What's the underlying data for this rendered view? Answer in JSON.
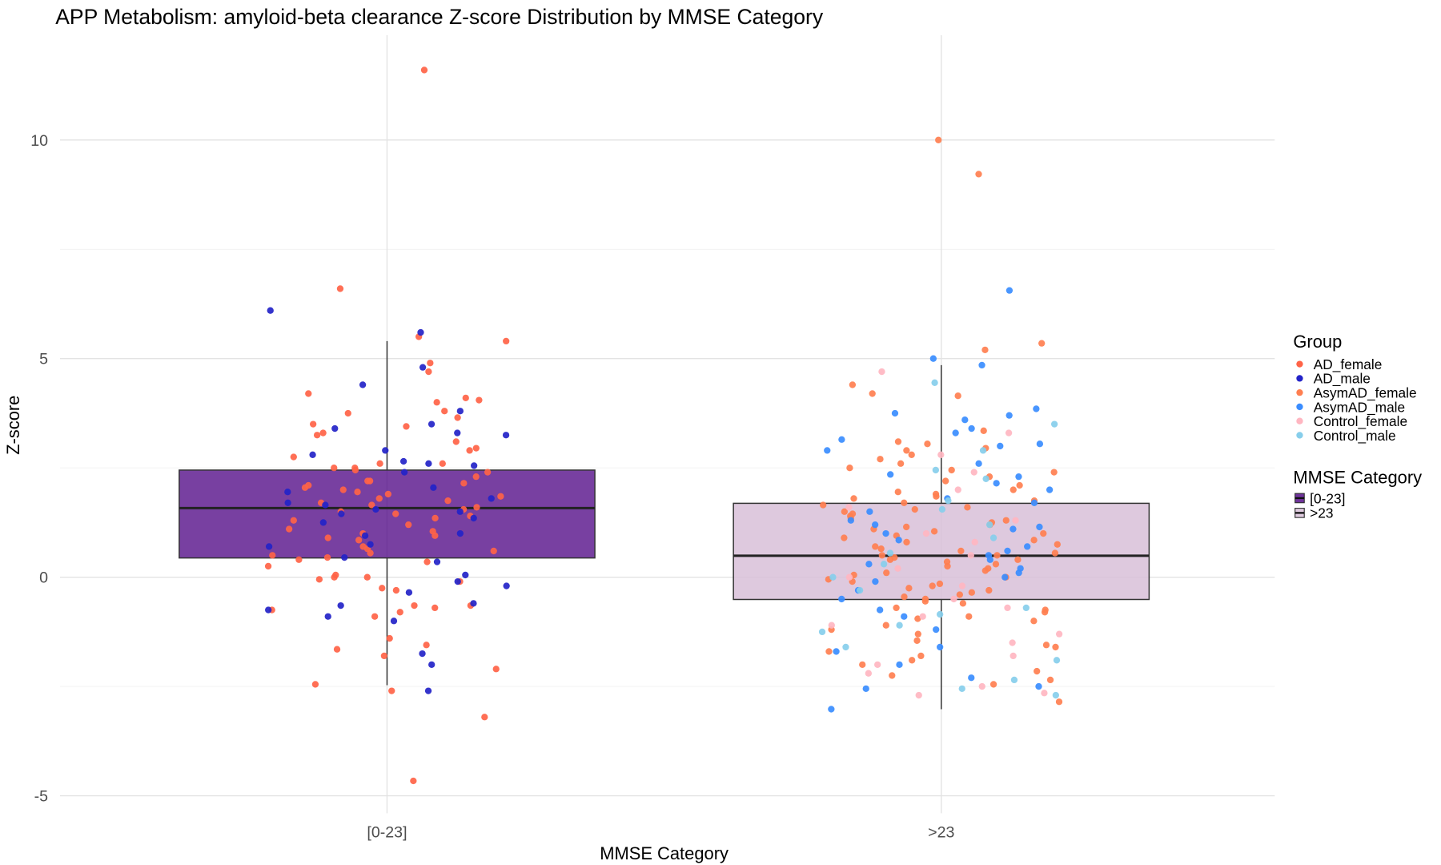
{
  "chart_data": {
    "type": "box+jitter",
    "title": "APP Metabolism: amyloid-beta clearance Z-score Distribution by MMSE Category",
    "xlabel": "MMSE Category",
    "ylabel": "Z-score",
    "categories": [
      "[0-23]",
      ">23"
    ],
    "ylim": [
      -5.4,
      12.4
    ],
    "yticks": [
      -5,
      0,
      5,
      10
    ],
    "ytick_labels": [
      "-5",
      "0",
      "5",
      "10"
    ],
    "grid": true,
    "boxes": [
      {
        "category": "[0-23]",
        "q1": 0.44,
        "median": 1.58,
        "q3": 2.45,
        "whisker_low": -2.47,
        "whisker_high": 5.4,
        "fill": "#4B0082",
        "alpha": 0.75
      },
      {
        "category": ">23",
        "q1": -0.51,
        "median": 0.49,
        "q3": 1.69,
        "whisker_low": -3.02,
        "whisker_high": 4.85,
        "fill": "#D8BFD8",
        "alpha": 0.85
      }
    ],
    "legend_group": {
      "title": "Group",
      "placement": "right",
      "entries": [
        {
          "name": "AD_female",
          "color": "#FF6347"
        },
        {
          "name": "AD_male",
          "color": "#2323C8"
        },
        {
          "name": "AsymAD_female",
          "color": "#FF7F50"
        },
        {
          "name": "AsymAD_male",
          "color": "#3A8DFF"
        },
        {
          "name": "Control_female",
          "color": "#FFB6C1"
        },
        {
          "name": "Control_male",
          "color": "#87CEEB"
        }
      ]
    },
    "legend_mmse": {
      "title": "MMSE Category",
      "entries": [
        {
          "name": "[0-23]",
          "color": "#4B0082"
        },
        {
          "name": ">23",
          "color": "#D8BFD8"
        }
      ]
    },
    "series": [
      {
        "name": "AD_female",
        "category": "[0-23]",
        "values": [
          11.6,
          6.6,
          5.5,
          5.4,
          4.9,
          4.7,
          4.2,
          4.05,
          4.0,
          4.1,
          3.8,
          3.75,
          3.65,
          3.5,
          3.45,
          3.3,
          3.25,
          3.1,
          2.95,
          2.9,
          2.75,
          2.6,
          2.6,
          2.5,
          2.5,
          2.45,
          2.4,
          2.3,
          2.2,
          2.2,
          2.15,
          2.1,
          2.05,
          2.0,
          1.95,
          1.9,
          1.85,
          1.8,
          1.75,
          1.7,
          1.65,
          1.6,
          1.55,
          1.5,
          1.45,
          1.4,
          1.35,
          1.3,
          1.2,
          1.1,
          1.05,
          1.0,
          0.95,
          0.9,
          0.85,
          0.7,
          0.65,
          0.6,
          0.55,
          0.5,
          0.45,
          0.4,
          0.35,
          0.25,
          0.05,
          0.0,
          0.0,
          -0.05,
          -0.1,
          -0.25,
          -0.3,
          -0.65,
          -0.65,
          -0.7,
          -0.75,
          -0.8,
          -0.9,
          -1.4,
          -1.55,
          -1.65,
          -1.8,
          -2.1,
          -2.45,
          -2.6,
          -3.2,
          -4.66
        ]
      },
      {
        "name": "AD_male",
        "category": "[0-23]",
        "values": [
          6.1,
          5.6,
          4.8,
          4.4,
          3.8,
          3.5,
          3.4,
          3.3,
          3.25,
          2.9,
          2.8,
          2.65,
          2.6,
          2.55,
          2.4,
          2.05,
          1.95,
          1.8,
          1.7,
          1.65,
          1.55,
          1.5,
          1.45,
          1.35,
          1.25,
          1.0,
          0.95,
          0.75,
          0.7,
          0.45,
          0.35,
          0.05,
          -0.1,
          -0.2,
          -0.35,
          -0.6,
          -0.65,
          -0.75,
          -0.9,
          -1.0,
          -1.75,
          -2.0,
          -2.6
        ]
      },
      {
        "name": "AsymAD_female",
        "category": ">23",
        "values": [
          10.0,
          9.22,
          5.35,
          5.2,
          4.4,
          4.15,
          4.2,
          3.35,
          3.05,
          3.1,
          2.95,
          2.9,
          2.8,
          2.7,
          2.6,
          2.5,
          2.45,
          2.4,
          2.3,
          2.2,
          2.1,
          2.0,
          1.95,
          1.9,
          1.85,
          1.8,
          1.75,
          1.7,
          1.65,
          1.6,
          1.55,
          1.5,
          1.45,
          1.4,
          1.35,
          1.3,
          1.25,
          1.2,
          1.15,
          1.1,
          1.05,
          1.0,
          0.95,
          0.9,
          0.85,
          0.8,
          0.75,
          0.7,
          0.65,
          0.6,
          0.55,
          0.5,
          0.5,
          0.45,
          0.4,
          0.4,
          0.35,
          0.3,
          0.25,
          0.2,
          0.15,
          0.1,
          0.05,
          0.0,
          -0.05,
          -0.1,
          -0.15,
          -0.2,
          -0.25,
          -0.3,
          -0.35,
          -0.4,
          -0.45,
          -0.5,
          -0.55,
          -0.6,
          -0.7,
          -0.75,
          -0.8,
          -0.9,
          -0.95,
          -1.0,
          -1.1,
          -1.2,
          -1.3,
          -1.45,
          -1.55,
          -1.6,
          -1.7,
          -1.8,
          -1.9,
          -2.0,
          -2.15,
          -2.25,
          -2.35,
          -2.45,
          -2.85
        ]
      },
      {
        "name": "AsymAD_male",
        "category": ">23",
        "values": [
          6.56,
          5.0,
          4.85,
          3.85,
          3.75,
          3.7,
          3.6,
          3.4,
          3.3,
          3.15,
          3.05,
          3.0,
          2.9,
          2.6,
          2.35,
          2.3,
          2.15,
          2.0,
          1.8,
          1.7,
          1.5,
          1.3,
          1.2,
          1.15,
          1.1,
          1.0,
          0.85,
          0.7,
          0.6,
          0.5,
          0.4,
          0.3,
          0.2,
          0.1,
          0.0,
          -0.1,
          -0.3,
          -0.5,
          -0.75,
          -0.9,
          -1.2,
          -1.6,
          -1.7,
          -2.0,
          -2.3,
          -2.5,
          -2.55,
          -3.02
        ]
      },
      {
        "name": "Control_female",
        "category": ">23",
        "values": [
          4.7,
          3.3,
          2.8,
          2.4,
          2.0,
          1.6,
          1.3,
          1.0,
          0.8,
          0.5,
          0.2,
          0.0,
          -0.2,
          -0.5,
          -0.7,
          -0.9,
          -1.1,
          -1.3,
          -1.5,
          -1.8,
          -2.0,
          -2.2,
          -2.5,
          -2.65,
          -2.7
        ]
      },
      {
        "name": "Control_male",
        "category": ">23",
        "values": [
          4.45,
          3.5,
          2.9,
          2.45,
          2.25,
          1.75,
          1.55,
          1.2,
          0.9,
          0.55,
          0.3,
          0.0,
          -0.3,
          -0.7,
          -0.85,
          -1.1,
          -1.25,
          -1.6,
          -1.9,
          -2.35,
          -2.55,
          -2.7
        ]
      }
    ]
  }
}
